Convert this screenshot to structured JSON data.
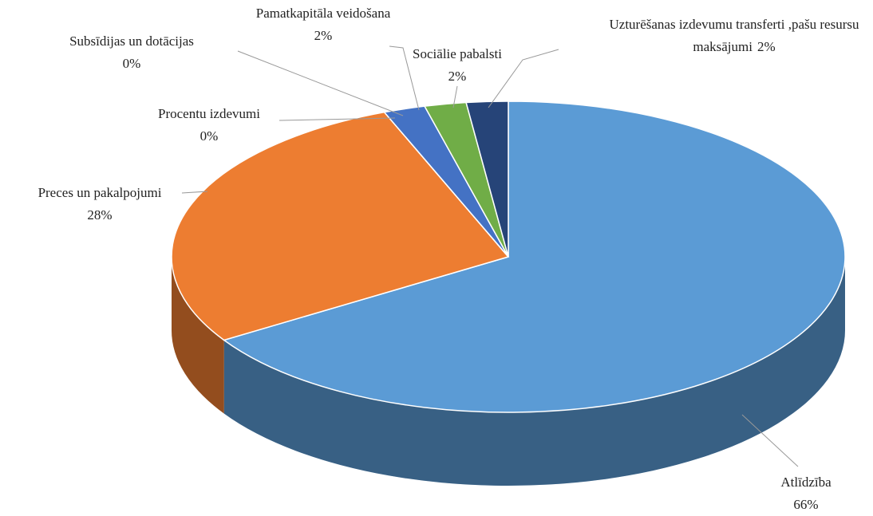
{
  "chart_data": {
    "type": "pie",
    "categories": [
      "Atlīdzība",
      "Preces un pakalpojumi",
      "Procentu izdevumi",
      "Subsīdijas un dotācijas",
      "Pamatkapitāla veidošana",
      "Sociālie pabalsti",
      "Uzturēšanas izdevumu transferti ,pašu resursu maksājumi"
    ],
    "values": [
      66,
      28,
      0,
      0,
      2,
      2,
      2
    ],
    "value_labels": [
      "66%",
      "28%",
      "0%",
      "0%",
      "2%",
      "2%",
      "2%"
    ],
    "colors": [
      "#5b9bd5",
      "#ed7d31",
      "#a5a5a5",
      "#ffc000",
      "#4472c4",
      "#70ad47",
      "#264478"
    ]
  }
}
